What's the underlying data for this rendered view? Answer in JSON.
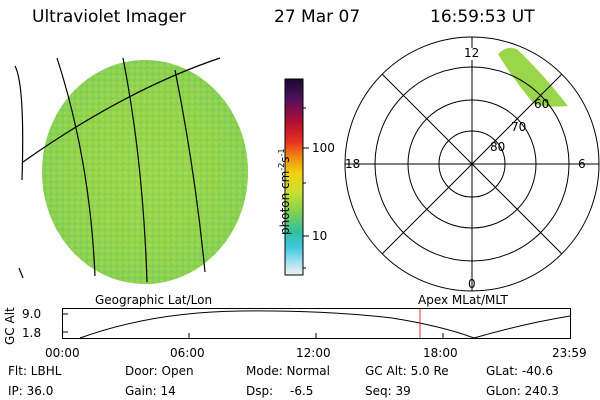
{
  "header": {
    "instrument": "Ultraviolet Imager",
    "date": "27 Mar 07",
    "time": "16:59:53 UT"
  },
  "colorbar": {
    "unit_label": "photon cm",
    "unit_exp1": "-2",
    "unit_s": "s",
    "unit_exp2": "-1",
    "tick_100": "100",
    "tick_10": "10",
    "scale": "log"
  },
  "polar_plot": {
    "mlt_top": "12",
    "mlt_left": "18",
    "mlt_right": "6",
    "mlt_bottom": "0",
    "lat_60": "60",
    "lat_70": "70",
    "lat_80": "80"
  },
  "timeline": {
    "left_label": "Geographic Lat/Lon",
    "right_label": "Apex MLat/MLT",
    "axis_title": "GC Alt",
    "y_max": "9.0",
    "y_min": "1.8",
    "ticks": [
      "00:00",
      "06:00",
      "12:00",
      "18:00",
      "23:59"
    ],
    "marker_color": "#e03030"
  },
  "info": {
    "flt": "Flt: LBHL",
    "ip": "IP: 36.0",
    "door": "Door: Open",
    "gain": "Gain: 14",
    "mode": "Mode: Normal",
    "dsp_label": "Dsp:",
    "dsp_value": "-6.5",
    "gcalt": "GC Alt: 5.0 Re",
    "seq": "Seq: 39",
    "glat": "GLat: -40.6",
    "glon": "GLon: 240.3"
  },
  "colors": {
    "disk_fill": "#9ad64a",
    "auroral_patch": "#9ad64a"
  }
}
